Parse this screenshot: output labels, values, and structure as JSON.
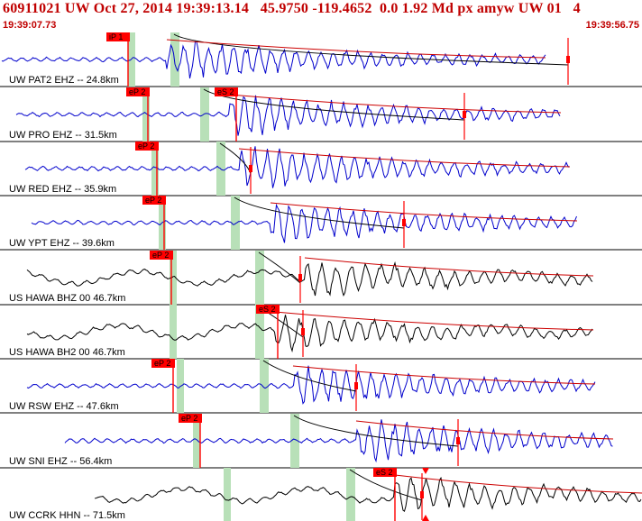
{
  "header": {
    "title": "60911021 UW Oct 27, 2014 19:39:13.14   45.9750 -119.4652  0.0 1.92 Md px amyw UW 01   4",
    "time_start": "19:39:07.73",
    "time_end": "19:39:56.75"
  },
  "colors": {
    "header_text": "#c00000",
    "trace_blue": "#0000cc",
    "trace_black": "#000000",
    "pick_box": "#ff0000",
    "theoretical_band": "#b8e0b8",
    "coda_curve": "#cc0000",
    "arrival_curve": "#000000"
  },
  "traces": [
    {
      "label": "UW PAT2 EHZ -- 24.8km",
      "color": "blue",
      "picks": [
        "iP 1"
      ]
    },
    {
      "label": "UW PRO EHZ -- 31.5km",
      "color": "blue",
      "picks": [
        "eP 2",
        "eS 2"
      ]
    },
    {
      "label": "UW RED EHZ -- 35.9km",
      "color": "blue",
      "picks": [
        "eP 2"
      ]
    },
    {
      "label": "UW YPT EHZ -- 39.6km",
      "color": "blue",
      "picks": [
        "eP 2"
      ]
    },
    {
      "label": "US HAWA BHZ 00 46.7km",
      "color": "black",
      "picks": [
        "eP 2"
      ]
    },
    {
      "label": "US HAWA BH2 00 46.7km",
      "color": "black",
      "picks": [
        "eS 2"
      ]
    },
    {
      "label": "UW RSW EHZ -- 47.6km",
      "color": "blue",
      "picks": [
        "eP 2"
      ]
    },
    {
      "label": "UW SNI EHZ -- 56.4km",
      "color": "blue",
      "picks": [
        "eP 2"
      ]
    },
    {
      "label": "UW CCRK HHN -- 71.5km",
      "color": "black",
      "picks": [
        "eS 2"
      ]
    }
  ]
}
